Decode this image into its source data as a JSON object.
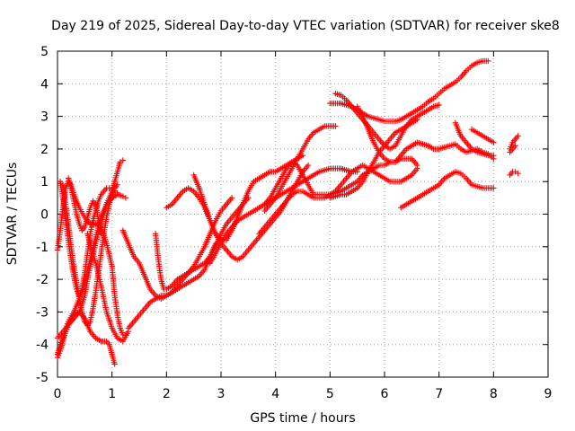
{
  "chart_data": {
    "type": "scatter",
    "title": "Day 219 of 2025, Sidereal Day-to-day VTEC variation (SDTVAR) for receiver ske8",
    "xlabel": "GPS time / hours",
    "ylabel": "SDTVAR / TECUs",
    "xlim": [
      0,
      9
    ],
    "ylim": [
      -5,
      5
    ],
    "xticks": [
      "0",
      "1",
      "2",
      "3",
      "4",
      "5",
      "6",
      "7",
      "8",
      "9"
    ],
    "yticks": [
      "-5",
      "-4",
      "-3",
      "-2",
      "-1",
      "0",
      "1",
      "2",
      "3",
      "4",
      "5"
    ],
    "grid": true,
    "marker": "+",
    "color": "#ff0000",
    "series": [
      {
        "x": [
          0.0,
          0.05,
          0.1,
          0.15,
          0.2,
          0.3,
          0.4,
          0.5,
          0.6,
          0.7,
          0.8,
          0.9,
          0.95,
          1.0,
          1.05
        ],
        "y": [
          -4.3,
          -4.0,
          -3.8,
          -3.6,
          -3.4,
          -3.1,
          -3.0,
          -3.2,
          -3.6,
          -3.8,
          -3.9,
          -3.9,
          -4.0,
          -4.3,
          -4.6
        ]
      },
      {
        "x": [
          0.0,
          0.05,
          0.1,
          0.15,
          0.2,
          0.25,
          0.3,
          0.4,
          0.5,
          0.6,
          0.7,
          0.8,
          0.9,
          1.0,
          1.05,
          1.1,
          1.15,
          1.2,
          1.25
        ],
        "y": [
          -1.1,
          -0.5,
          0.2,
          0.8,
          1.0,
          0.9,
          0.6,
          0.2,
          -0.1,
          -0.3,
          -0.3,
          -0.4,
          -0.9,
          -1.6,
          -2.5,
          -3.1,
          -3.5,
          -3.7,
          -3.7
        ]
      },
      {
        "x": [
          0.0,
          0.05,
          0.1,
          0.15,
          0.2,
          0.3,
          0.4,
          0.5,
          0.55,
          0.6,
          0.7,
          0.8,
          0.9,
          1.0,
          1.05,
          1.1,
          1.15,
          1.2
        ],
        "y": [
          -4.4,
          -4.2,
          -3.9,
          -3.6,
          -3.4,
          -3.2,
          -3.0,
          -2.5,
          -2.0,
          -1.6,
          -0.9,
          -0.3,
          0.3,
          0.7,
          1.0,
          1.3,
          1.6,
          1.65
        ]
      },
      {
        "x": [
          0.0,
          0.05,
          0.1,
          0.15,
          0.2,
          0.3,
          0.4,
          0.5,
          0.6,
          0.7,
          0.8,
          0.9,
          1.0,
          1.1,
          1.2,
          1.25
        ],
        "y": [
          -3.8,
          -3.7,
          -3.6,
          -3.5,
          -3.3,
          -3.0,
          -2.6,
          -2.1,
          -1.4,
          -0.7,
          -0.1,
          0.3,
          0.5,
          0.6,
          0.55,
          0.5
        ]
      },
      {
        "x": [
          0.05,
          0.1,
          0.15,
          0.2,
          0.25,
          0.3,
          0.35,
          0.4,
          0.45,
          0.5,
          0.55,
          0.6,
          0.65,
          0.7,
          0.75,
          0.8,
          0.85,
          0.9,
          0.95,
          1.0,
          1.05,
          1.1
        ],
        "y": [
          1.0,
          0.5,
          -0.2,
          -0.8,
          -1.4,
          -1.9,
          -2.3,
          -2.5,
          -2.3,
          -1.8,
          -1.2,
          -0.6,
          -0.2,
          0.1,
          0.4,
          0.6,
          0.7,
          0.8,
          0.8,
          0.75,
          0.7,
          0.65
        ]
      },
      {
        "x": [
          0.1,
          0.15,
          0.2,
          0.25,
          0.3,
          0.35,
          0.4,
          0.45,
          0.5,
          0.55,
          0.6,
          0.65,
          0.7,
          0.75,
          0.8,
          0.85,
          0.9,
          0.95,
          1.0,
          1.05,
          1.1
        ],
        "y": [
          0.9,
          0.3,
          -0.3,
          -1.0,
          -1.6,
          -2.1,
          -2.6,
          -3.0,
          -3.3,
          -3.4,
          -3.3,
          -2.9,
          -2.4,
          -1.8,
          -1.2,
          -0.6,
          -0.1,
          0.3,
          0.6,
          0.8,
          0.9
        ]
      },
      {
        "x": [
          0.2,
          0.25,
          0.3,
          0.35,
          0.4,
          0.45,
          0.5,
          0.55,
          0.6,
          0.65,
          0.7,
          0.75,
          0.8
        ],
        "y": [
          1.1,
          0.8,
          0.4,
          0.0,
          -0.3,
          -0.5,
          -0.4,
          -0.1,
          0.2,
          0.4,
          0.3,
          -0.2,
          -0.6
        ]
      },
      {
        "x": [
          0.55,
          0.6,
          0.7,
          0.8,
          0.9,
          1.0,
          1.1,
          1.2,
          1.3
        ],
        "y": [
          -0.6,
          -0.9,
          -1.5,
          -2.2,
          -3.0,
          -3.5,
          -3.8,
          -3.9,
          -3.6
        ]
      },
      {
        "x": [
          1.2,
          1.3,
          1.4,
          1.5,
          1.6,
          1.7,
          1.8,
          1.9,
          2.0,
          2.1,
          2.2,
          2.3,
          2.4,
          2.5,
          2.6,
          2.7,
          2.8,
          2.9
        ],
        "y": [
          -0.5,
          -0.9,
          -1.3,
          -1.5,
          -1.9,
          -2.3,
          -2.5,
          -2.6,
          -2.5,
          -2.4,
          -2.3,
          -2.2,
          -2.1,
          -2.0,
          -1.9,
          -1.7,
          -1.3,
          -0.9
        ]
      },
      {
        "x": [
          1.3,
          1.4,
          1.5,
          1.6,
          1.7,
          1.8,
          1.9,
          2.0,
          2.1,
          2.2,
          2.3,
          2.4,
          2.5,
          2.6,
          2.7,
          2.8,
          2.9,
          3.0,
          3.1,
          3.2
        ],
        "y": [
          -3.5,
          -3.3,
          -3.1,
          -2.9,
          -2.7,
          -2.6,
          -2.5,
          -2.5,
          -2.4,
          -2.2,
          -2.0,
          -1.8,
          -1.6,
          -1.3,
          -1.0,
          -0.6,
          -0.2,
          0.1,
          0.3,
          0.5
        ]
      },
      {
        "x": [
          1.8,
          1.85,
          1.9,
          1.95,
          2.0,
          2.1,
          2.2,
          2.3,
          2.4,
          2.5,
          2.6,
          2.7,
          2.8,
          2.9,
          3.0,
          3.1,
          3.2,
          3.3,
          3.4,
          3.5
        ],
        "y": [
          -0.6,
          -1.4,
          -2.0,
          -2.3,
          -2.3,
          -2.2,
          -2.0,
          -1.9,
          -1.8,
          -1.7,
          -1.6,
          -1.5,
          -1.3,
          -1.0,
          -0.6,
          -0.3,
          -0.1,
          0.1,
          0.3,
          0.5
        ]
      },
      {
        "x": [
          2.0,
          2.1,
          2.2,
          2.3,
          2.4,
          2.5,
          2.6,
          2.7,
          2.8,
          2.9,
          3.0,
          3.1,
          3.2,
          3.3,
          3.4,
          3.5,
          3.6,
          3.7,
          3.8,
          3.9,
          4.0,
          4.1,
          4.2,
          4.3,
          4.4,
          4.5,
          4.6
        ],
        "y": [
          0.2,
          0.3,
          0.5,
          0.7,
          0.8,
          0.7,
          0.5,
          0.2,
          -0.2,
          -0.6,
          -0.9,
          -1.1,
          -1.3,
          -1.4,
          -1.3,
          -1.1,
          -0.9,
          -0.7,
          -0.5,
          -0.3,
          -0.1,
          0.1,
          0.4,
          0.7,
          1.0,
          1.3,
          1.5
        ]
      },
      {
        "x": [
          2.5,
          2.6,
          2.7,
          2.8,
          2.9,
          3.0,
          3.1,
          3.2,
          3.3,
          3.4,
          3.5,
          3.6,
          3.7,
          3.8,
          3.9,
          4.0,
          4.1,
          4.2,
          4.3,
          4.4,
          4.5
        ],
        "y": [
          1.2,
          0.8,
          0.3,
          -0.2,
          -0.6,
          -0.8,
          -0.8,
          -0.5,
          -0.1,
          0.3,
          0.7,
          1.0,
          1.1,
          1.2,
          1.3,
          1.3,
          1.4,
          1.5,
          1.6,
          1.7,
          1.8
        ]
      },
      {
        "x": [
          2.8,
          2.9,
          3.0,
          3.1,
          3.2,
          3.3,
          3.4,
          3.5,
          3.6,
          3.7,
          3.8,
          3.9,
          4.0,
          4.1,
          4.2,
          4.3,
          4.4,
          4.5,
          4.6,
          4.7,
          4.8,
          4.9,
          5.0,
          5.1,
          5.2,
          5.3,
          5.4,
          5.5
        ],
        "y": [
          -1.5,
          -1.2,
          -0.9,
          -0.6,
          -0.4,
          -0.2,
          -0.1,
          0.0,
          0.1,
          0.2,
          0.3,
          0.4,
          0.5,
          0.6,
          0.7,
          0.8,
          0.9,
          1.0,
          1.1,
          1.2,
          1.3,
          1.35,
          1.4,
          1.4,
          1.4,
          1.35,
          1.3,
          1.3
        ]
      },
      {
        "x": [
          3.8,
          3.9,
          4.0,
          4.1,
          4.2,
          4.3,
          4.4,
          4.5,
          4.6,
          4.7,
          4.8,
          4.9,
          5.0,
          5.1
        ],
        "y": [
          0.1,
          0.3,
          0.5,
          0.8,
          1.1,
          1.4,
          1.7,
          2.0,
          2.3,
          2.5,
          2.6,
          2.7,
          2.7,
          2.7
        ]
      },
      {
        "x": [
          3.8,
          3.9,
          4.0,
          4.1,
          4.2,
          4.3,
          4.4,
          4.5,
          4.6,
          4.7,
          4.8,
          4.9,
          5.0,
          5.1,
          5.2,
          5.3,
          5.4,
          5.5,
          5.6,
          5.7,
          5.8,
          5.9,
          6.0,
          6.1,
          6.2,
          6.3,
          6.4,
          6.5,
          6.6
        ],
        "y": [
          0.3,
          0.5,
          0.8,
          1.1,
          1.4,
          1.6,
          1.5,
          1.2,
          0.9,
          0.6,
          0.6,
          0.6,
          0.6,
          0.65,
          0.7,
          0.8,
          0.9,
          1.0,
          1.2,
          1.3,
          1.4,
          1.5,
          1.5,
          1.6,
          1.6,
          1.7,
          1.7,
          1.7,
          1.5
        ]
      },
      {
        "x": [
          3.7,
          3.8,
          3.9,
          4.0,
          4.1,
          4.2,
          4.3,
          4.4,
          4.5,
          4.6,
          4.7,
          4.8,
          4.9,
          5.0,
          5.1,
          5.2,
          5.3,
          5.4,
          5.5,
          5.6,
          5.7,
          5.8,
          5.9,
          6.0,
          6.1,
          6.2,
          6.3,
          6.4,
          6.5,
          6.6
        ],
        "y": [
          -0.6,
          -0.4,
          -0.2,
          0.0,
          0.2,
          0.4,
          0.6,
          0.7,
          0.7,
          0.6,
          0.5,
          0.5,
          0.5,
          0.6,
          0.7,
          0.9,
          1.1,
          1.3,
          1.4,
          1.5,
          1.4,
          1.3,
          1.2,
          1.1,
          1.0,
          1.0,
          1.0,
          1.1,
          1.2,
          1.4
        ]
      },
      {
        "x": [
          5.0,
          5.1,
          5.2,
          5.3,
          5.4,
          5.5,
          5.6,
          5.7,
          5.8,
          5.9,
          6.0,
          6.1,
          6.2,
          6.3,
          6.4,
          6.5,
          6.6,
          6.7,
          6.8,
          6.9,
          7.0,
          7.1,
          7.2,
          7.3,
          7.4,
          7.5,
          7.6,
          7.7,
          7.8,
          7.9
        ],
        "y": [
          3.4,
          3.4,
          3.4,
          3.35,
          3.3,
          3.2,
          3.1,
          3.0,
          2.95,
          2.9,
          2.85,
          2.85,
          2.85,
          2.9,
          3.0,
          3.1,
          3.2,
          3.3,
          3.45,
          3.55,
          3.7,
          3.85,
          3.95,
          4.05,
          4.2,
          4.4,
          4.55,
          4.65,
          4.7,
          4.7
        ]
      },
      {
        "x": [
          5.1,
          5.2,
          5.3,
          5.4,
          5.5,
          5.6,
          5.7,
          5.8,
          5.9,
          6.0,
          6.1,
          6.2,
          6.3,
          6.4,
          6.5,
          6.6,
          6.7,
          6.8,
          6.9,
          7.0
        ],
        "y": [
          3.7,
          3.65,
          3.5,
          3.3,
          3.1,
          2.9,
          2.7,
          2.5,
          2.3,
          2.1,
          2.0,
          2.1,
          2.4,
          2.7,
          2.9,
          3.0,
          3.1,
          3.2,
          3.3,
          3.35
        ]
      },
      {
        "x": [
          5.5,
          5.6,
          5.7,
          5.8,
          5.9,
          6.0,
          6.1,
          6.2,
          6.3,
          6.4,
          6.5,
          6.6,
          6.7,
          6.8,
          6.9,
          7.0,
          7.1,
          7.2,
          7.3,
          7.4,
          7.5,
          7.6,
          7.7,
          7.8,
          7.9,
          8.0
        ],
        "y": [
          3.3,
          3.0,
          2.6,
          2.2,
          1.9,
          1.7,
          1.6,
          1.6,
          1.8,
          2.0,
          2.1,
          2.2,
          2.15,
          2.1,
          2.0,
          2.0,
          2.05,
          2.1,
          2.15,
          2.0,
          1.9,
          1.95,
          2.0,
          1.9,
          1.85,
          1.7
        ]
      },
      {
        "x": [
          5.0,
          5.1,
          5.2,
          5.3,
          5.4,
          5.5,
          5.6,
          5.7,
          5.8,
          5.9,
          6.0,
          6.1,
          6.2,
          6.3,
          6.4,
          6.5,
          6.6
        ],
        "y": [
          0.5,
          0.55,
          0.6,
          0.6,
          0.7,
          0.8,
          1.0,
          1.3,
          1.6,
          1.9,
          2.1,
          2.3,
          2.5,
          2.6,
          2.7,
          2.8,
          2.9
        ]
      },
      {
        "x": [
          6.3,
          6.4,
          6.5,
          6.6,
          6.7,
          6.8,
          6.9,
          7.0,
          7.1,
          7.2,
          7.3,
          7.4,
          7.5,
          7.6,
          7.7,
          7.8,
          7.9,
          8.0
        ],
        "y": [
          0.2,
          0.3,
          0.4,
          0.5,
          0.6,
          0.7,
          0.8,
          0.9,
          1.1,
          1.2,
          1.3,
          1.25,
          1.1,
          0.9,
          0.85,
          0.8,
          0.8,
          0.8
        ]
      },
      {
        "x": [
          7.3,
          7.4,
          7.5,
          7.6,
          7.7,
          7.8,
          7.9,
          8.0
        ],
        "y": [
          2.8,
          2.4,
          2.2,
          2.0,
          1.9,
          1.85,
          1.8,
          1.8
        ]
      },
      {
        "x": [
          7.6,
          7.7,
          7.8,
          7.9,
          8.0
        ],
        "y": [
          2.6,
          2.5,
          2.4,
          2.3,
          2.2
        ]
      },
      {
        "x": [
          8.3,
          8.35,
          8.4,
          8.45
        ],
        "y": [
          2.0,
          2.2,
          2.3,
          2.4
        ]
      },
      {
        "x": [
          8.3,
          8.35,
          8.4,
          8.45
        ],
        "y": [
          1.2,
          1.3,
          1.3,
          1.25
        ]
      },
      {
        "x": [
          8.3,
          8.35,
          8.4
        ],
        "y": [
          1.9,
          2.0,
          2.1
        ]
      }
    ]
  }
}
